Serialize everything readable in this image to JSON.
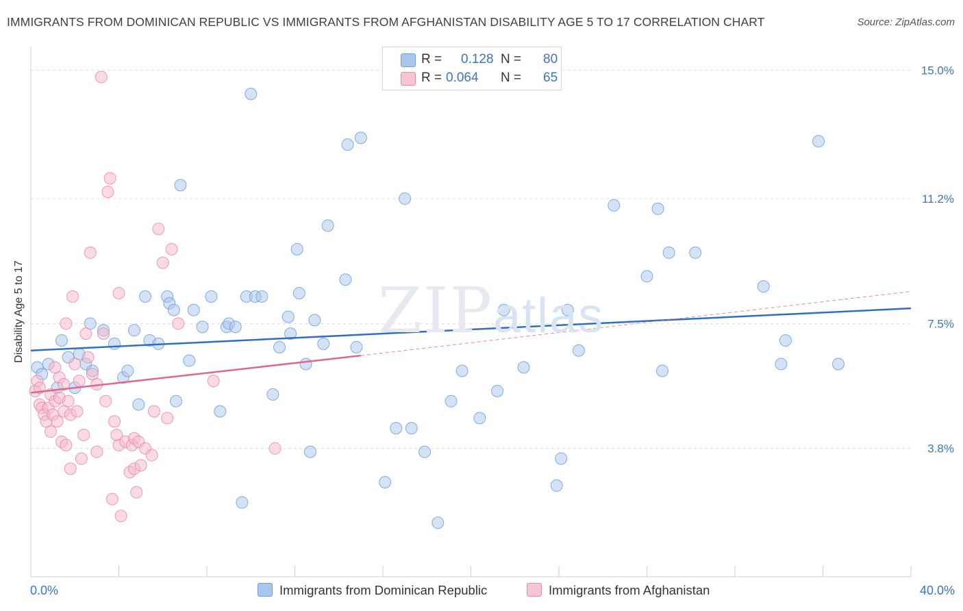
{
  "title": "IMMIGRANTS FROM DOMINICAN REPUBLIC VS IMMIGRANTS FROM AFGHANISTAN DISABILITY AGE 5 TO 17 CORRELATION CHART",
  "source": "Source: ZipAtlas.com",
  "watermark": {
    "zip": "ZIP",
    "atlas": "atlas"
  },
  "legend": {
    "rows": [
      {
        "r_label": "R =",
        "r_value": "0.128",
        "n_label": "N =",
        "n_value": "80"
      },
      {
        "r_label": "R =",
        "r_value": "0.064",
        "n_label": "N =",
        "n_value": "65"
      }
    ]
  },
  "colors": {
    "blue_fill": "#a9c6ee",
    "blue_stroke": "#6f9fda",
    "blue_line": "#2e6ec8",
    "pink_fill": "#f6b8cb",
    "pink_stroke": "#e889a8",
    "pink_line": "#e0668f",
    "grid": "#dcdcdc",
    "axis_text": "#3a74c8"
  },
  "chart_data": {
    "type": "scatter",
    "title": "IMMIGRANTS FROM DOMINICAN REPUBLIC VS IMMIGRANTS FROM AFGHANISTAN DISABILITY AGE 5 TO 17 CORRELATION CHART",
    "xlabel": "",
    "ylabel": "Disability Age 5 to 17",
    "xlim": [
      0,
      40
    ],
    "ylim": [
      0,
      15.5
    ],
    "x_tick_labels": [
      "0.0%",
      "40.0%"
    ],
    "y_ticks": [
      3.8,
      7.5,
      11.2,
      15.0
    ],
    "y_tick_labels": [
      "3.8%",
      "7.5%",
      "11.2%",
      "15.0%"
    ],
    "grid": true,
    "legend_position": "top-center",
    "series": [
      {
        "name": "Immigrants from Dominican Republic",
        "color": "blue",
        "trend": {
          "x": [
            0,
            40
          ],
          "y": [
            6.7,
            7.95
          ]
        },
        "points": [
          [
            0.3,
            6.2
          ],
          [
            0.5,
            6.0
          ],
          [
            0.8,
            6.3
          ],
          [
            1.2,
            5.6
          ],
          [
            1.4,
            7.0
          ],
          [
            1.7,
            6.5
          ],
          [
            2.0,
            5.6
          ],
          [
            2.2,
            6.6
          ],
          [
            2.5,
            6.3
          ],
          [
            2.8,
            6.1
          ],
          [
            2.7,
            7.5
          ],
          [
            3.3,
            7.3
          ],
          [
            3.8,
            6.9
          ],
          [
            4.2,
            5.9
          ],
          [
            4.4,
            6.1
          ],
          [
            4.7,
            7.3
          ],
          [
            4.9,
            5.1
          ],
          [
            5.2,
            8.3
          ],
          [
            5.4,
            7.0
          ],
          [
            5.8,
            6.9
          ],
          [
            6.2,
            8.3
          ],
          [
            6.3,
            8.1
          ],
          [
            6.5,
            7.9
          ],
          [
            6.6,
            5.2
          ],
          [
            6.8,
            11.6
          ],
          [
            7.2,
            6.4
          ],
          [
            7.4,
            7.9
          ],
          [
            7.8,
            7.4
          ],
          [
            8.2,
            8.3
          ],
          [
            8.6,
            4.9
          ],
          [
            8.9,
            7.4
          ],
          [
            9.0,
            7.5
          ],
          [
            9.3,
            7.4
          ],
          [
            9.6,
            2.2
          ],
          [
            9.8,
            8.3
          ],
          [
            10.0,
            14.3
          ],
          [
            10.2,
            8.3
          ],
          [
            10.5,
            8.3
          ],
          [
            11.0,
            5.4
          ],
          [
            11.3,
            6.8
          ],
          [
            11.7,
            7.7
          ],
          [
            11.8,
            7.2
          ],
          [
            12.1,
            9.7
          ],
          [
            12.2,
            8.4
          ],
          [
            12.5,
            6.3
          ],
          [
            12.7,
            3.7
          ],
          [
            12.9,
            7.6
          ],
          [
            13.3,
            6.9
          ],
          [
            13.5,
            10.4
          ],
          [
            14.3,
            8.8
          ],
          [
            14.4,
            12.8
          ],
          [
            14.8,
            6.8
          ],
          [
            15.0,
            13.0
          ],
          [
            16.1,
            2.8
          ],
          [
            16.6,
            4.4
          ],
          [
            17.0,
            11.2
          ],
          [
            17.3,
            4.4
          ],
          [
            17.9,
            3.7
          ],
          [
            18.5,
            1.6
          ],
          [
            19.1,
            5.2
          ],
          [
            19.6,
            6.1
          ],
          [
            20.4,
            4.7
          ],
          [
            21.2,
            5.5
          ],
          [
            21.5,
            7.9
          ],
          [
            22.4,
            6.2
          ],
          [
            23.9,
            2.7
          ],
          [
            24.1,
            3.5
          ],
          [
            24.4,
            7.9
          ],
          [
            24.9,
            6.7
          ],
          [
            26.5,
            11.0
          ],
          [
            28.0,
            8.9
          ],
          [
            28.5,
            10.9
          ],
          [
            28.7,
            6.1
          ],
          [
            29.0,
            9.6
          ],
          [
            30.2,
            9.6
          ],
          [
            33.3,
            8.6
          ],
          [
            34.1,
            6.3
          ],
          [
            34.3,
            7.0
          ],
          [
            35.8,
            12.9
          ],
          [
            36.7,
            6.3
          ]
        ]
      },
      {
        "name": "Immigrants from Afghanistan",
        "color": "pink",
        "trend": {
          "x": [
            0,
            15
          ],
          "y": [
            5.45,
            6.55
          ]
        },
        "trend_extension": {
          "x": [
            15,
            40
          ],
          "y": [
            6.55,
            8.45
          ]
        },
        "points": [
          [
            0.2,
            5.5
          ],
          [
            0.3,
            5.8
          ],
          [
            0.4,
            5.1
          ],
          [
            0.5,
            5.0
          ],
          [
            0.6,
            4.8
          ],
          [
            0.7,
            4.6
          ],
          [
            0.8,
            5.0
          ],
          [
            0.9,
            4.3
          ],
          [
            0.9,
            5.4
          ],
          [
            1.0,
            4.8
          ],
          [
            1.1,
            5.2
          ],
          [
            1.2,
            4.6
          ],
          [
            1.3,
            5.9
          ],
          [
            1.3,
            5.3
          ],
          [
            1.4,
            4.0
          ],
          [
            1.5,
            4.9
          ],
          [
            1.5,
            5.7
          ],
          [
            1.6,
            3.9
          ],
          [
            1.6,
            7.5
          ],
          [
            1.7,
            5.2
          ],
          [
            1.8,
            3.2
          ],
          [
            1.8,
            4.8
          ],
          [
            1.9,
            8.3
          ],
          [
            2.0,
            6.3
          ],
          [
            2.2,
            5.8
          ],
          [
            2.3,
            3.5
          ],
          [
            2.4,
            4.2
          ],
          [
            2.5,
            7.2
          ],
          [
            2.6,
            6.5
          ],
          [
            2.7,
            9.6
          ],
          [
            2.8,
            6.0
          ],
          [
            3.0,
            3.7
          ],
          [
            3.0,
            5.7
          ],
          [
            3.2,
            14.8
          ],
          [
            3.3,
            7.2
          ],
          [
            3.4,
            5.2
          ],
          [
            3.5,
            11.4
          ],
          [
            3.6,
            11.8
          ],
          [
            3.7,
            2.3
          ],
          [
            3.8,
            4.6
          ],
          [
            3.9,
            4.2
          ],
          [
            4.0,
            8.4
          ],
          [
            4.0,
            3.9
          ],
          [
            4.1,
            1.8
          ],
          [
            4.3,
            4.0
          ],
          [
            4.5,
            3.1
          ],
          [
            4.6,
            3.9
          ],
          [
            4.7,
            4.1
          ],
          [
            4.7,
            3.2
          ],
          [
            4.8,
            2.5
          ],
          [
            4.9,
            4.0
          ],
          [
            5.0,
            3.3
          ],
          [
            5.2,
            3.8
          ],
          [
            5.5,
            3.6
          ],
          [
            5.6,
            4.9
          ],
          [
            5.8,
            10.3
          ],
          [
            6.0,
            9.3
          ],
          [
            6.2,
            4.7
          ],
          [
            6.4,
            9.7
          ],
          [
            6.7,
            7.5
          ],
          [
            8.3,
            5.8
          ],
          [
            11.1,
            3.8
          ],
          [
            0.4,
            5.6
          ],
          [
            1.1,
            6.2
          ],
          [
            2.1,
            4.9
          ]
        ]
      }
    ]
  },
  "bottom_legend": [
    "Immigrants from Dominican Republic",
    "Immigrants from Afghanistan"
  ]
}
